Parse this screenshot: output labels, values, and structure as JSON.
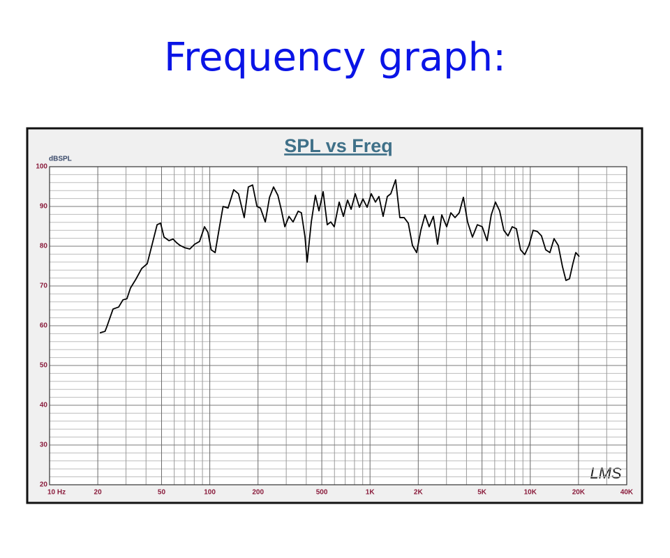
{
  "page_title": "Frequency graph:",
  "chart_data": {
    "type": "line",
    "title": "SPL vs Freq",
    "y_label": "dBSPL",
    "logo": "LMS",
    "x_scale": "log",
    "grid": true,
    "color": "#000000",
    "xlim": [
      10,
      40000
    ],
    "xticks": [
      {
        "value": 10,
        "label": "10 Hz"
      },
      20,
      50,
      100,
      200,
      500,
      {
        "value": 1000,
        "label": "1K"
      },
      {
        "value": 2000,
        "label": "2K"
      },
      {
        "value": 5000,
        "label": "5K"
      },
      {
        "value": 10000,
        "label": "10K"
      },
      {
        "value": 20000,
        "label": "20K"
      },
      {
        "value": 40000,
        "label": "40K"
      }
    ],
    "x_minor_grid": [
      30,
      40,
      60,
      70,
      80,
      90,
      300,
      400,
      600,
      700,
      800,
      900,
      3000,
      4000,
      6000,
      7000,
      8000,
      9000,
      30000
    ],
    "ylim": [
      20,
      100
    ],
    "yticks": [
      20,
      30,
      40,
      50,
      60,
      70,
      80,
      90,
      100
    ],
    "y_minor_grid": [
      22,
      24,
      26,
      28,
      32,
      34,
      36,
      38,
      42,
      44,
      46,
      48,
      52,
      54,
      56,
      58,
      62,
      64,
      66,
      68,
      72,
      74,
      76,
      78,
      82,
      84,
      86,
      88,
      92,
      94,
      96,
      98
    ],
    "x": [
      20.6,
      22.2,
      22.8,
      24.9,
      27,
      28.7,
      30.4,
      32,
      34.7,
      37.6,
      40.7,
      43.7,
      46.9,
      49.3,
      51.8,
      55.6,
      59,
      62,
      65.2,
      70,
      75,
      80.5,
      86.3,
      92.7,
      97.4,
      102,
      108,
      114,
      121,
      130,
      141,
      151,
      164,
      174,
      185,
      197,
      207,
      222,
      236,
      250,
      266,
      279,
      294,
      312,
      331,
      356,
      373,
      393,
      405,
      430,
      456,
      480,
      510,
      541,
      569,
      598,
      642,
      682,
      724,
      762,
      809,
      859,
      903,
      959,
      1018,
      1081,
      1137,
      1207,
      1282,
      1348,
      1445,
      1535,
      1632,
      1733,
      1840,
      1954,
      2075,
      2204,
      2340,
      2485,
      2639,
      2804,
      3008,
      3194,
      3392,
      3603,
      3826,
      4063,
      4357,
      4675,
      5013,
      5377,
      5710,
      6064,
      6440,
      6839,
      7263,
      7714,
      8192,
      8700,
      9239,
      9812,
      10420,
      11070,
      11750,
      12490,
      13260,
      14080,
      14950,
      15880,
      16700,
      17570,
      18450,
      19230,
      20230
    ],
    "values": [
      58.2,
      58.6,
      59.8,
      64.2,
      64.7,
      66.5,
      66.8,
      69.5,
      71.8,
      74.4,
      75.6,
      80.5,
      85.4,
      85.8,
      82.3,
      81.4,
      81.8,
      80.9,
      80.2,
      79.6,
      79.3,
      80.5,
      81.2,
      84.9,
      83.5,
      79.1,
      78.4,
      84,
      90,
      89.6,
      94.2,
      93.2,
      87.2,
      94.9,
      95.4,
      90,
      89.6,
      86.1,
      92.3,
      94.9,
      92.8,
      89.3,
      84.9,
      87.5,
      86.1,
      88.8,
      88.4,
      82.3,
      76,
      86.1,
      92.8,
      88.9,
      93.7,
      85.4,
      86.1,
      84.9,
      91.1,
      87.5,
      91.6,
      89.3,
      93.2,
      89.8,
      91.9,
      89.8,
      93.2,
      91.1,
      92.5,
      87.5,
      92.5,
      93.2,
      96.7,
      87.2,
      87.2,
      85.8,
      80.2,
      78.4,
      84,
      87.9,
      84.9,
      87.5,
      80.5,
      87.9,
      84.9,
      88.4,
      87.2,
      88.4,
      92.3,
      86.1,
      82.3,
      85.4,
      84.9,
      81.4,
      87.9,
      91.1,
      88.9,
      84,
      82.6,
      84.9,
      84.4,
      79.1,
      77.9,
      80.2,
      84,
      83.7,
      82.6,
      79.1,
      78.4,
      81.9,
      80.2,
      74.9,
      71.4,
      71.8,
      75.6,
      78.4,
      77.4
    ]
  }
}
